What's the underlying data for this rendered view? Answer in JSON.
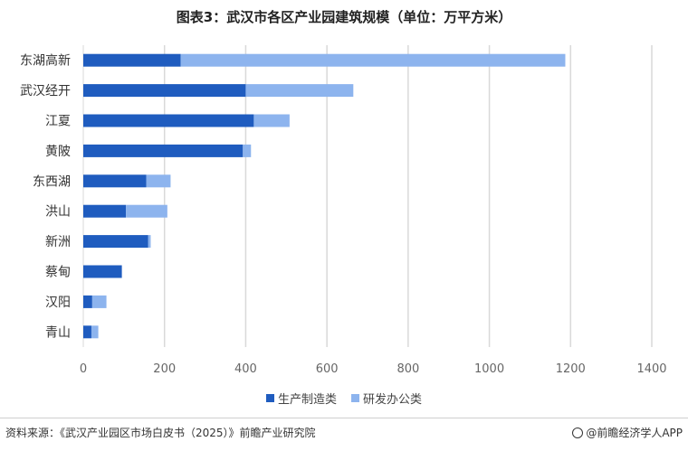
{
  "title": "图表3：武汉市各区产业园建筑规模（单位：万平方米）",
  "colors": {
    "manufacturing": "#1F5CBF",
    "rnd_office": "#8DB4EE",
    "grid": "#D9D9D9",
    "axis_text": "#666666"
  },
  "chart_data": {
    "type": "bar",
    "orientation": "horizontal",
    "stacked": true,
    "title": "图表3：武汉市各区产业园建筑规模（单位：万平方米）",
    "categories": [
      "东湖高新",
      "武汉经开",
      "江夏",
      "黄陂",
      "东西湖",
      "洪山",
      "新洲",
      "蔡甸",
      "汉阳",
      "青山"
    ],
    "series": [
      {
        "name": "生产制造类",
        "values": [
          240,
          400,
          420,
          393,
          155,
          105,
          160,
          95,
          22,
          20
        ]
      },
      {
        "name": "研发办公类",
        "values": [
          947,
          265,
          88,
          20,
          60,
          102,
          6,
          0,
          35,
          17
        ]
      }
    ],
    "xlim": [
      0,
      1400
    ],
    "xticks": [
      "0",
      "200",
      "400",
      "600",
      "800",
      "1000",
      "1200",
      "1400"
    ],
    "grid": "vertical",
    "legend": "bottom-center"
  },
  "footer": {
    "source": "资料来源：《武汉产业园区市场白皮书（2025）》前瞻产业研究院",
    "brand": "@前瞻经济学人APP"
  }
}
